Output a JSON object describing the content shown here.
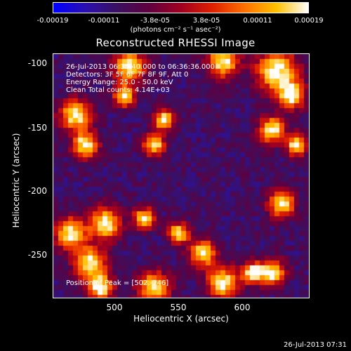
{
  "title": "Reconstructed RHESSI Image",
  "colorbar": {
    "ticks": [
      "-0.00019",
      "-0.00011",
      "-3.8e-05",
      "3.8e-05",
      "0.00011",
      "0.00019"
    ],
    "units": "(photons cm⁻² s⁻¹ asec⁻²)",
    "colors": [
      "#0000ff",
      "#2a10b0",
      "#3a1060",
      "#600040",
      "#a00020",
      "#e02000",
      "#ff7000",
      "#ffc000",
      "#ffffff"
    ]
  },
  "info": {
    "time_range": "26-Jul-2013 06:35:40.000 to 06:36:36.000",
    "detectors": "Detectors: 3F 5F 6F 7F 8F 9F, Att 0",
    "energy": "Energy Range: 25.0 - 50.0 keV",
    "clean": "Clean    Total counts: 4.14E+03",
    "peak": "Position of Peak = [502,-246]"
  },
  "axes": {
    "xlabel": "Heliocentric X (arcsec)",
    "ylabel": "Heliocentric Y (arcsec)",
    "x_ticks": [
      "500",
      "550",
      "600"
    ],
    "y_ticks": [
      "-100",
      "-150",
      "-200",
      "-250"
    ]
  },
  "timestamp": "26-Jul-2013 07:31"
}
